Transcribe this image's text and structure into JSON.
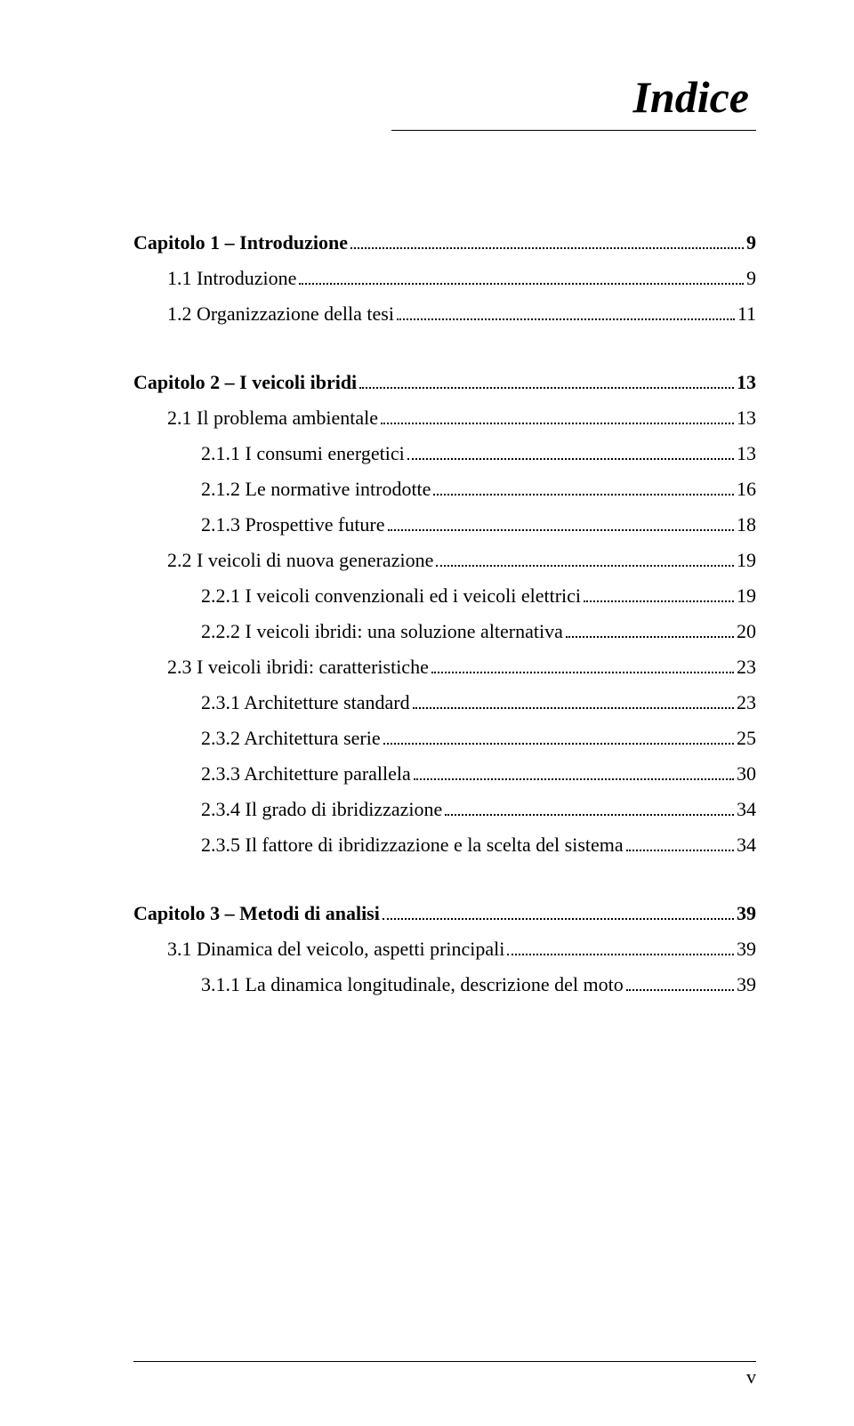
{
  "title": "Indice",
  "footer_page": "v",
  "colors": {
    "text": "#000000",
    "background": "#ffffff",
    "rule": "#000000"
  },
  "typography": {
    "body_family": "Times New Roman",
    "body_size_pt": 16,
    "title_size_pt": 38,
    "title_style": "italic bold"
  },
  "entries": [
    {
      "level": "chapter",
      "label": "Capitolo 1 – Introduzione",
      "page": "9"
    },
    {
      "level": "level1",
      "label": "1.1 Introduzione",
      "page": "9"
    },
    {
      "level": "level1",
      "label": "1.2 Organizzazione della tesi",
      "page": "11"
    },
    {
      "level": "chapter",
      "label": "Capitolo 2 – I veicoli ibridi",
      "page": "13"
    },
    {
      "level": "level1",
      "label": "2.1 Il problema ambientale",
      "page": "13"
    },
    {
      "level": "level2",
      "label": "2.1.1 I consumi energetici",
      "page": "13"
    },
    {
      "level": "level2",
      "label": "2.1.2 Le normative introdotte",
      "page": "16"
    },
    {
      "level": "level2",
      "label": "2.1.3 Prospettive future",
      "page": "18"
    },
    {
      "level": "level1",
      "label": "2.2 I veicoli di nuova generazione",
      "page": "19"
    },
    {
      "level": "level2",
      "label": "2.2.1 I veicoli convenzionali ed i veicoli elettrici",
      "page": "19"
    },
    {
      "level": "level2",
      "label": "2.2.2 I veicoli ibridi: una soluzione alternativa",
      "page": "20"
    },
    {
      "level": "level1",
      "label": "2.3 I veicoli ibridi: caratteristiche",
      "page": "23"
    },
    {
      "level": "level2",
      "label": "2.3.1 Architetture standard",
      "page": "23"
    },
    {
      "level": "level2",
      "label": "2.3.2 Architettura serie",
      "page": "25"
    },
    {
      "level": "level2",
      "label": "2.3.3 Architetture parallela",
      "page": "30"
    },
    {
      "level": "level2",
      "label": "2.3.4 Il grado di ibridizzazione",
      "page": "34"
    },
    {
      "level": "level2",
      "label": "2.3.5 Il fattore di ibridizzazione e la scelta del sistema",
      "page": "34"
    },
    {
      "level": "chapter",
      "label": "Capitolo 3 – Metodi di analisi",
      "page": "39"
    },
    {
      "level": "level1",
      "label": "3.1 Dinamica del veicolo, aspetti principali",
      "page": "39"
    },
    {
      "level": "level2",
      "label": "3.1.1 La dinamica longitudinale, descrizione del moto",
      "page": "39"
    }
  ]
}
